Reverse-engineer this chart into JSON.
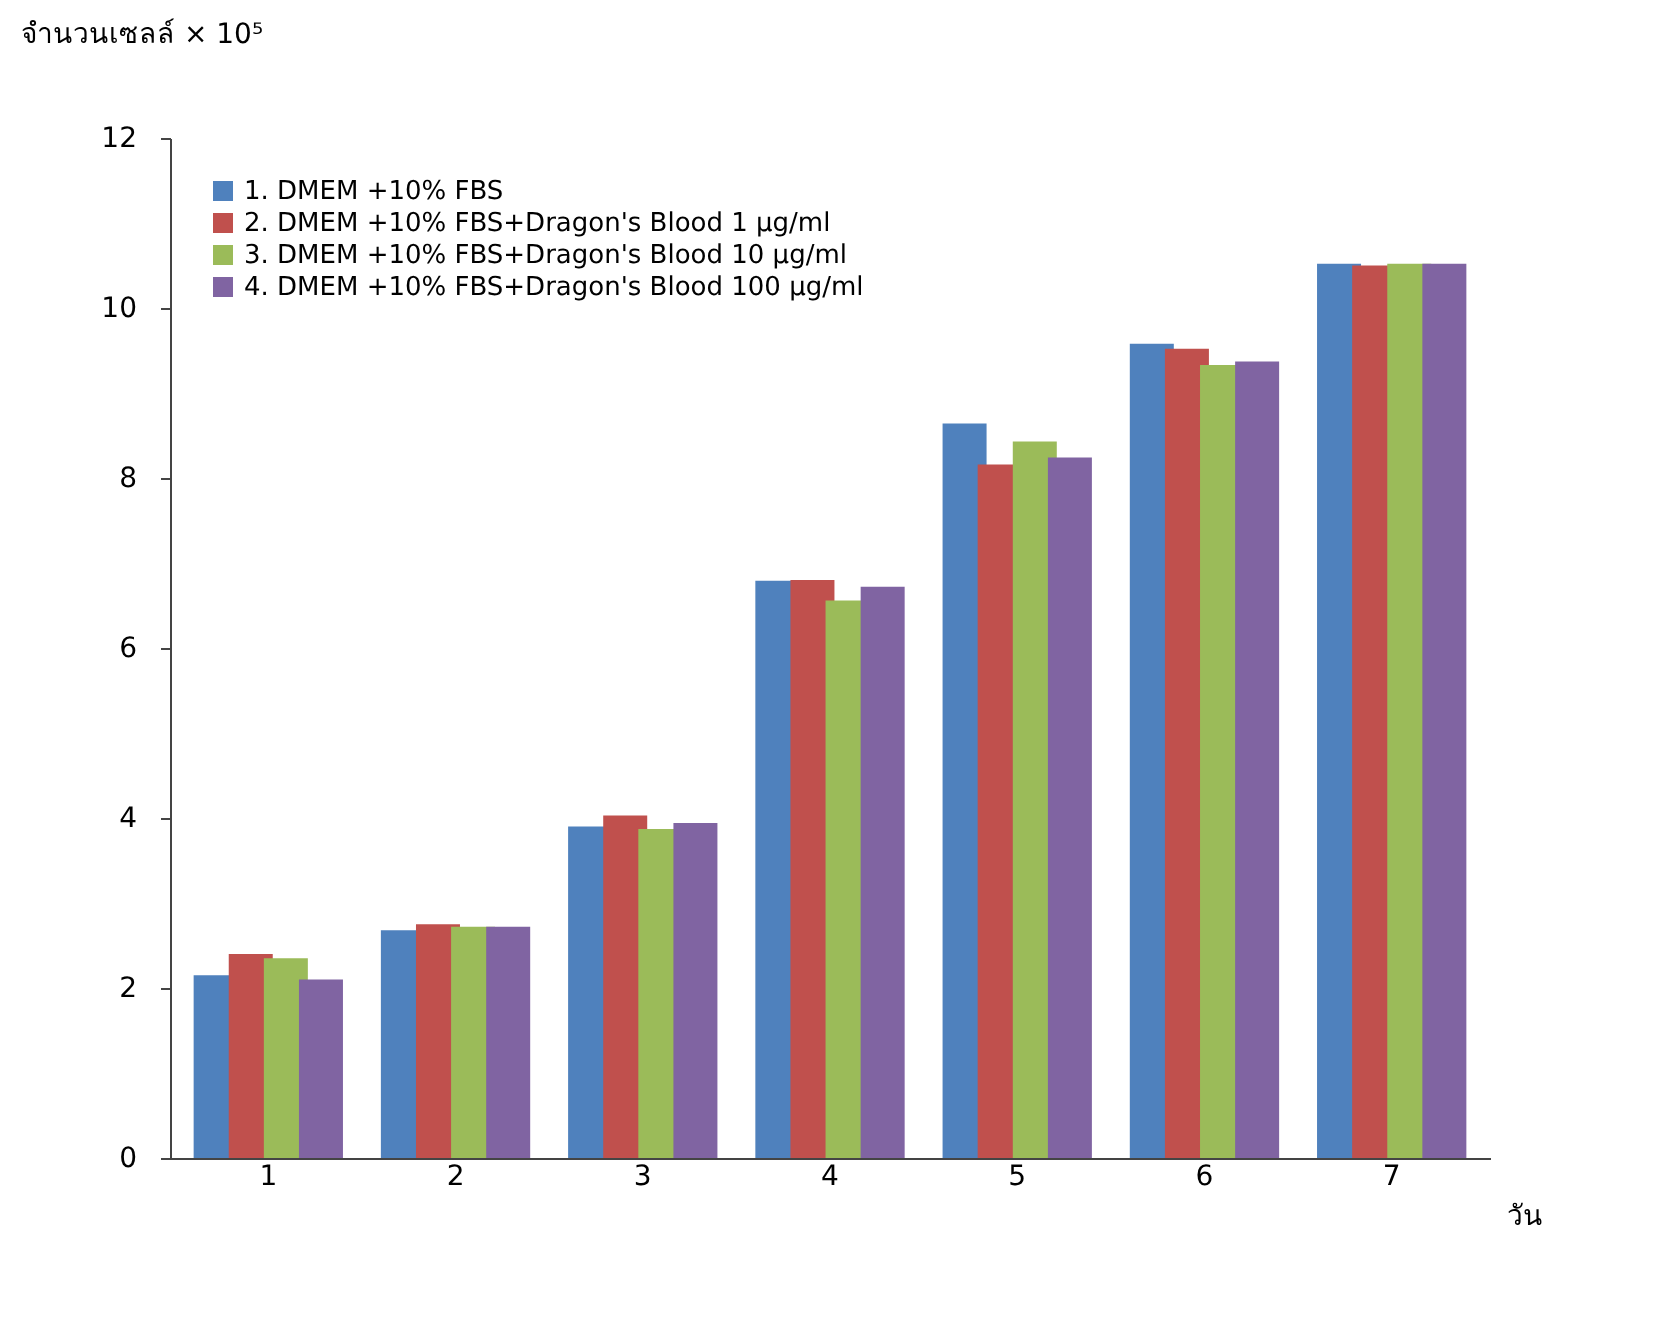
{
  "chart_data": {
    "type": "bar",
    "ylabel": "จำนวนเซลล์ × 10⁵",
    "xlabel": "วัน",
    "categories": [
      "1",
      "2",
      "3",
      "4",
      "5",
      "6",
      "7"
    ],
    "series": [
      {
        "name": "1. DMEM +10% FBS",
        "color": "#4f81bd",
        "values": [
          2.15,
          2.68,
          3.9,
          6.79,
          8.64,
          9.58,
          10.52
        ]
      },
      {
        "name": "2. DMEM +10% FBS+Dragon's Blood 1 µg/ml",
        "color": "#c0504d",
        "values": [
          2.4,
          2.75,
          4.03,
          6.8,
          8.16,
          9.52,
          10.5
        ]
      },
      {
        "name": "3. DMEM +10% FBS+Dragon's Blood 10 µg/ml",
        "color": "#9bbb59",
        "values": [
          2.35,
          2.72,
          3.87,
          6.56,
          8.43,
          9.33,
          10.52
        ]
      },
      {
        "name": "4. DMEM +10% FBS+Dragon's Blood 100 µg/ml",
        "color": "#8064a2",
        "values": [
          2.1,
          2.72,
          3.94,
          6.72,
          8.24,
          9.37,
          10.52
        ]
      }
    ],
    "ylim": [
      0,
      12
    ],
    "yticks": [
      0,
      2,
      4,
      6,
      8,
      10,
      12
    ],
    "grid": false,
    "legend": "top left"
  }
}
